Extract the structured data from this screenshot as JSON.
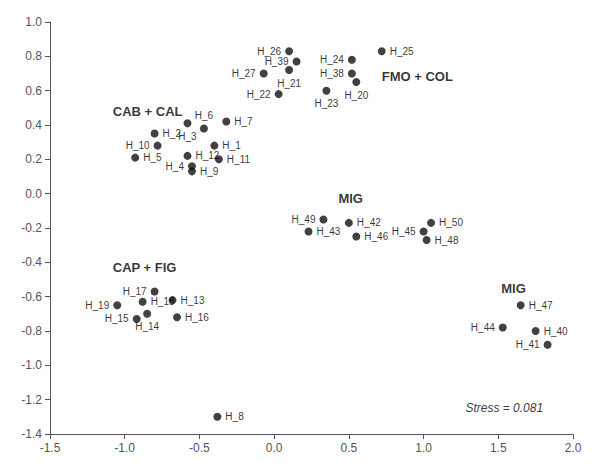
{
  "chart_data": {
    "type": "scatter",
    "color": "#111111",
    "labels": [
      "H_1",
      "H_2",
      "H_3",
      "H_4",
      "H_5",
      "H_6",
      "H_7",
      "H_8",
      "H_9",
      "H_10",
      "H_11",
      "H_12",
      "H_13",
      "H_14",
      "H_15",
      "H_16",
      "H_17",
      "H_18",
      "H_19",
      "H_20",
      "H_21",
      "H_22",
      "H_23",
      "H_24",
      "H_25",
      "H_26",
      "H_27",
      "H_38",
      "H_39",
      "H_40",
      "H_41",
      "H_42",
      "H_43",
      "H_44",
      "H_45",
      "H_46",
      "H_47",
      "H_48",
      "H_49",
      "H_50"
    ],
    "x": [
      -0.4,
      -0.8,
      -0.58,
      -0.55,
      -0.93,
      -0.47,
      -0.32,
      -0.38,
      -0.55,
      -0.78,
      -0.37,
      -0.58,
      -0.68,
      -0.85,
      -0.92,
      -0.65,
      -0.8,
      -0.88,
      -1.05,
      0.55,
      0.1,
      0.03,
      0.35,
      0.52,
      0.72,
      0.1,
      -0.07,
      0.52,
      0.15,
      1.75,
      1.83,
      0.5,
      0.23,
      1.53,
      1.0,
      0.55,
      1.65,
      1.02,
      0.33,
      1.05
    ],
    "values": [
      0.28,
      0.35,
      0.41,
      0.16,
      0.21,
      0.38,
      0.42,
      -1.3,
      0.13,
      0.28,
      0.2,
      0.22,
      -0.62,
      -0.7,
      -0.73,
      -0.72,
      -0.57,
      -0.63,
      -0.65,
      0.65,
      0.72,
      0.58,
      0.6,
      0.78,
      0.83,
      0.83,
      0.7,
      0.7,
      0.77,
      -0.8,
      -0.88,
      -0.17,
      -0.22,
      -0.78,
      -0.22,
      -0.25,
      -0.65,
      -0.27,
      -0.15,
      -0.17
    ],
    "group_labels": [
      {
        "text": "CAB + CAL",
        "x": -1.08,
        "y": 0.48
      },
      {
        "text": "FMO + COL",
        "x": 0.72,
        "y": 0.68
      },
      {
        "text": "CAP + FIG",
        "x": -1.08,
        "y": -0.43
      },
      {
        "text": "MIG",
        "x": 0.43,
        "y": -0.03
      },
      {
        "text": "MIG",
        "x": 1.52,
        "y": -0.55
      }
    ],
    "annotations": [
      {
        "text": "Stress = 0.081",
        "x": 1.28,
        "y": -1.25
      }
    ],
    "xlim": [
      -1.5,
      2.0
    ],
    "ylim": [
      -1.4,
      1.0
    ],
    "xticks": [
      -1.5,
      {
        "value": -1.0,
        "label": "-1.0"
      },
      -0.5,
      {
        "value": 0.0,
        "label": "0.0"
      },
      0.5,
      {
        "value": 1.0,
        "label": "1.0"
      },
      1.5,
      {
        "value": 2.0,
        "label": "2.0"
      }
    ],
    "yticks": [
      {
        "value": 1.0,
        "label": "1.0"
      },
      0.8,
      0.6,
      0.4,
      0.2,
      {
        "value": 0.0,
        "label": "0.0"
      },
      -0.2,
      -0.4,
      -0.6,
      -0.8,
      {
        "value": -1.0,
        "label": "-1.0"
      },
      -1.2,
      -1.4
    ],
    "grid": false
  }
}
